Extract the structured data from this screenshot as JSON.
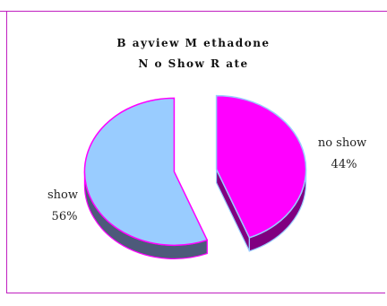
{
  "chart_data": {
    "type": "pie",
    "title_lines": [
      "B ayview  M ethadone",
      "N o  Show  R ate"
    ],
    "slices": [
      {
        "label": "no show",
        "percent_label": "44%",
        "value": 44,
        "color": "#ff00ff",
        "side_color": "#800080",
        "edge_color": "#99ccff"
      },
      {
        "label": "show",
        "percent_label": "56%",
        "value": 56,
        "color": "#99ccff",
        "side_color": "#4d5a7a",
        "edge_color": "#ff00ff"
      }
    ],
    "exploded": true,
    "three_d": true,
    "legend": "none"
  }
}
